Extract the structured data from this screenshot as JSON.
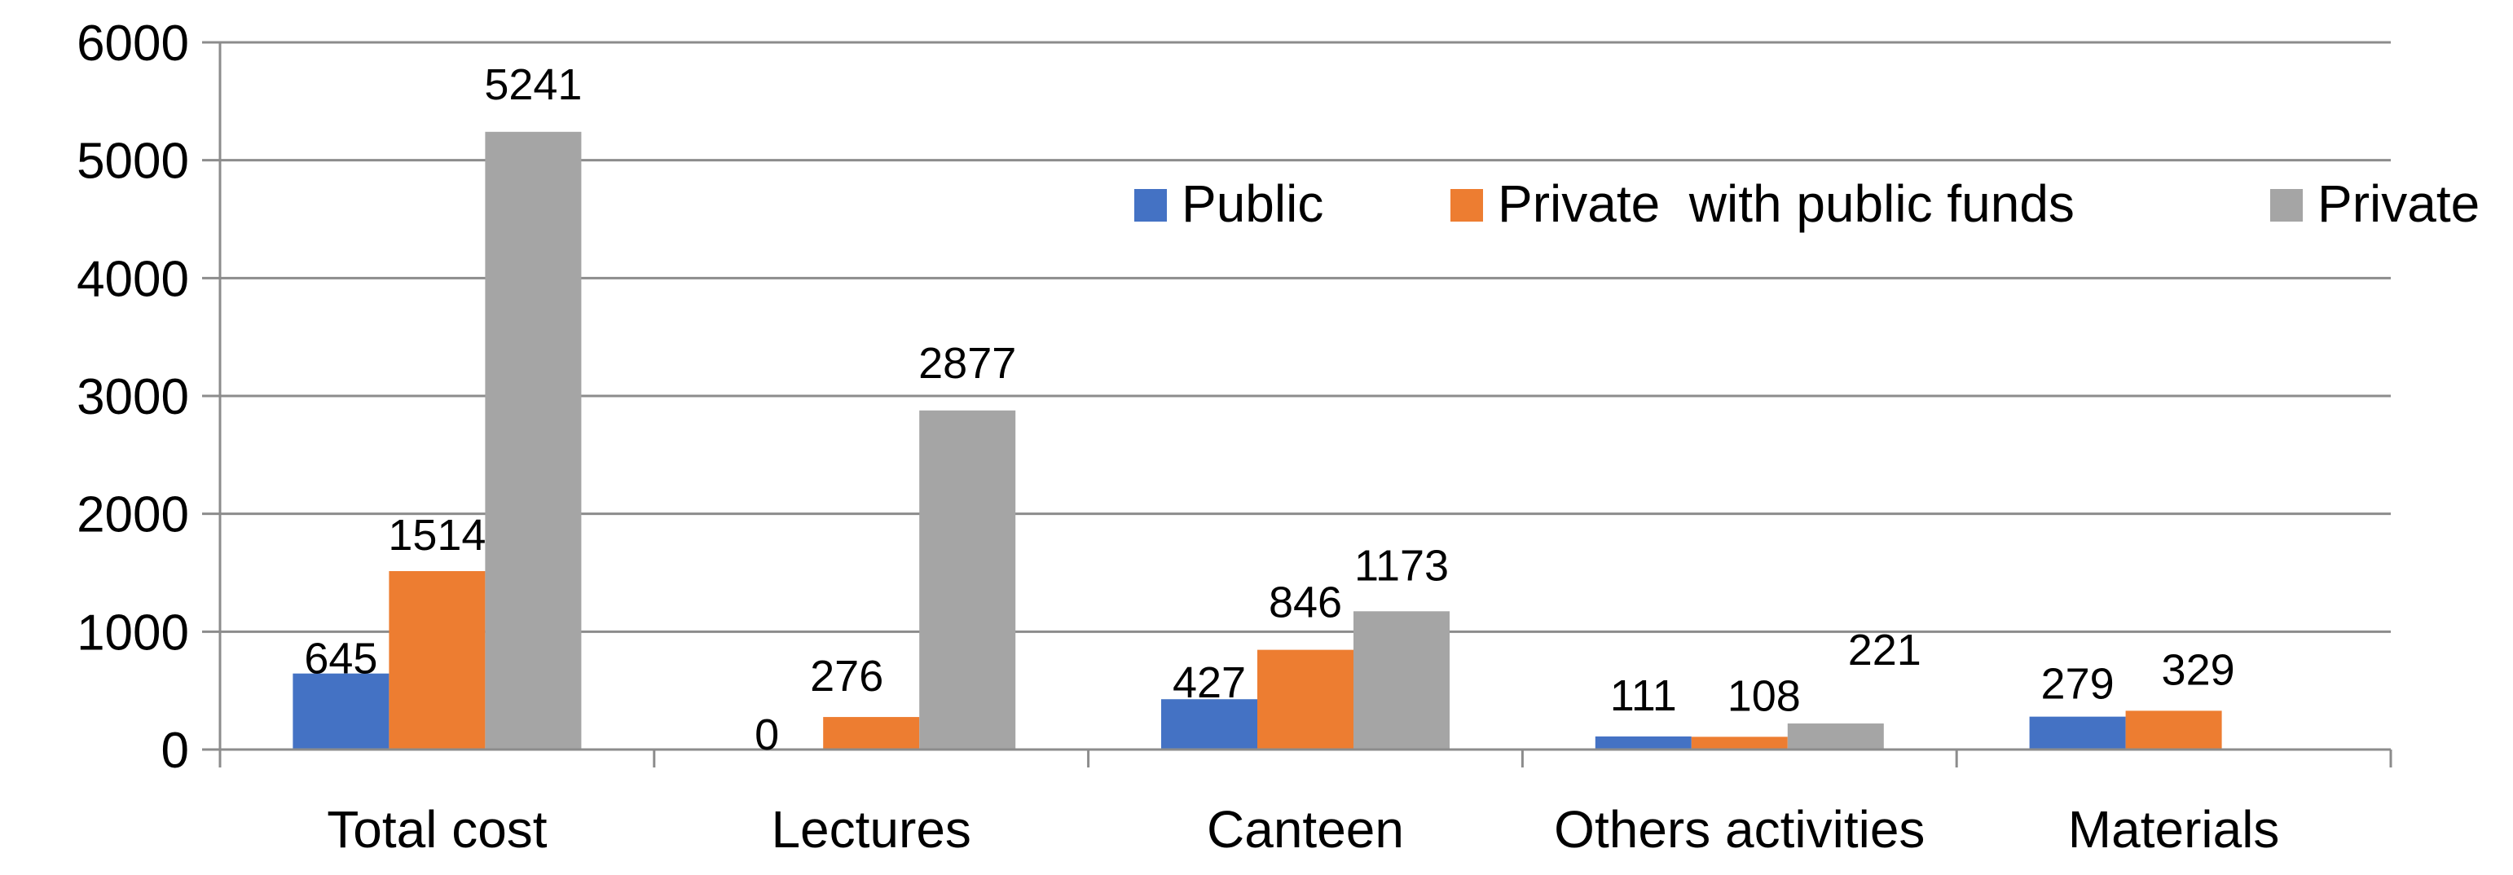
{
  "chart_data": {
    "type": "bar",
    "title": "",
    "xlabel": "",
    "ylabel": "",
    "ylim": [
      0,
      6000
    ],
    "yticks": [
      0,
      1000,
      2000,
      3000,
      4000,
      5000,
      6000
    ],
    "grid": true,
    "legend_position": "top-right",
    "categories": [
      "Total cost",
      "Lectures",
      "Canteen",
      "Others activities",
      "Materials"
    ],
    "series": [
      {
        "name": "Public",
        "color": "#4472C4",
        "values": [
          645,
          0,
          427,
          111,
          279
        ],
        "labels": [
          "645",
          "0",
          "427",
          "111",
          "279"
        ]
      },
      {
        "name": "Private  with public funds",
        "color": "#ED7D31",
        "values": [
          1514,
          276,
          846,
          108,
          329
        ],
        "labels": [
          "1514",
          "276",
          "846",
          "108",
          "329"
        ]
      },
      {
        "name": "Private",
        "color": "#A5A5A5",
        "values": [
          5241,
          2877,
          1173,
          221,
          null
        ],
        "labels": [
          "5241",
          "2877",
          "1173",
          "221",
          null
        ]
      }
    ]
  }
}
